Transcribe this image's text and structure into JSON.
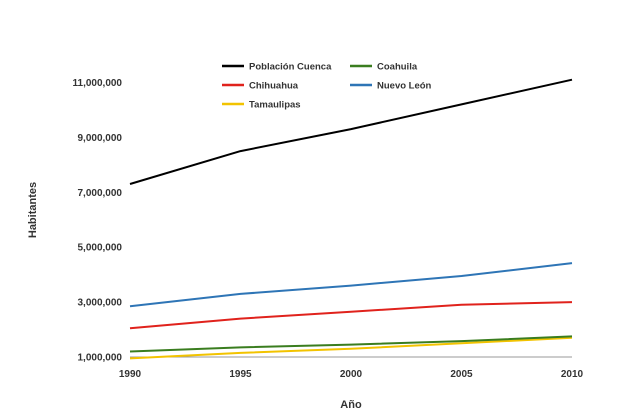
{
  "chart_data": {
    "type": "line",
    "title": "",
    "xlabel": "Año",
    "ylabel": "Habitantes",
    "x": [
      1990,
      1995,
      2000,
      2005,
      2010
    ],
    "x_tick_labels": [
      "1990",
      "1995",
      "2000",
      "2005",
      "2010"
    ],
    "y_tick_values": [
      1000000,
      3000000,
      5000000,
      7000000,
      9000000,
      11000000
    ],
    "y_tick_labels": [
      "1,000,000",
      "3,000,000",
      "5,000,000",
      "7,000,000",
      "9,000,000",
      "11,000,000"
    ],
    "xlim": [
      1990,
      2010
    ],
    "ylim": [
      1000000,
      12000000
    ],
    "grid": false,
    "legend_position": "top-center",
    "series": [
      {
        "name": "Población Cuenca",
        "color": "#000000",
        "values": [
          7300000,
          8500000,
          9300000,
          10200000,
          11100000
        ]
      },
      {
        "name": "Chihuahua",
        "color": "#e0221c",
        "values": [
          2050000,
          2400000,
          2650000,
          2900000,
          3000000
        ]
      },
      {
        "name": "Tamaulipas",
        "color": "#f2c300",
        "values": [
          950000,
          1150000,
          1300000,
          1500000,
          1700000
        ]
      },
      {
        "name": "Coahuila",
        "color": "#3a7d1f",
        "values": [
          1200000,
          1350000,
          1450000,
          1580000,
          1750000
        ]
      },
      {
        "name": "Nuevo León",
        "color": "#2e75b6",
        "values": [
          2850000,
          3300000,
          3600000,
          3950000,
          4420000
        ]
      }
    ]
  }
}
